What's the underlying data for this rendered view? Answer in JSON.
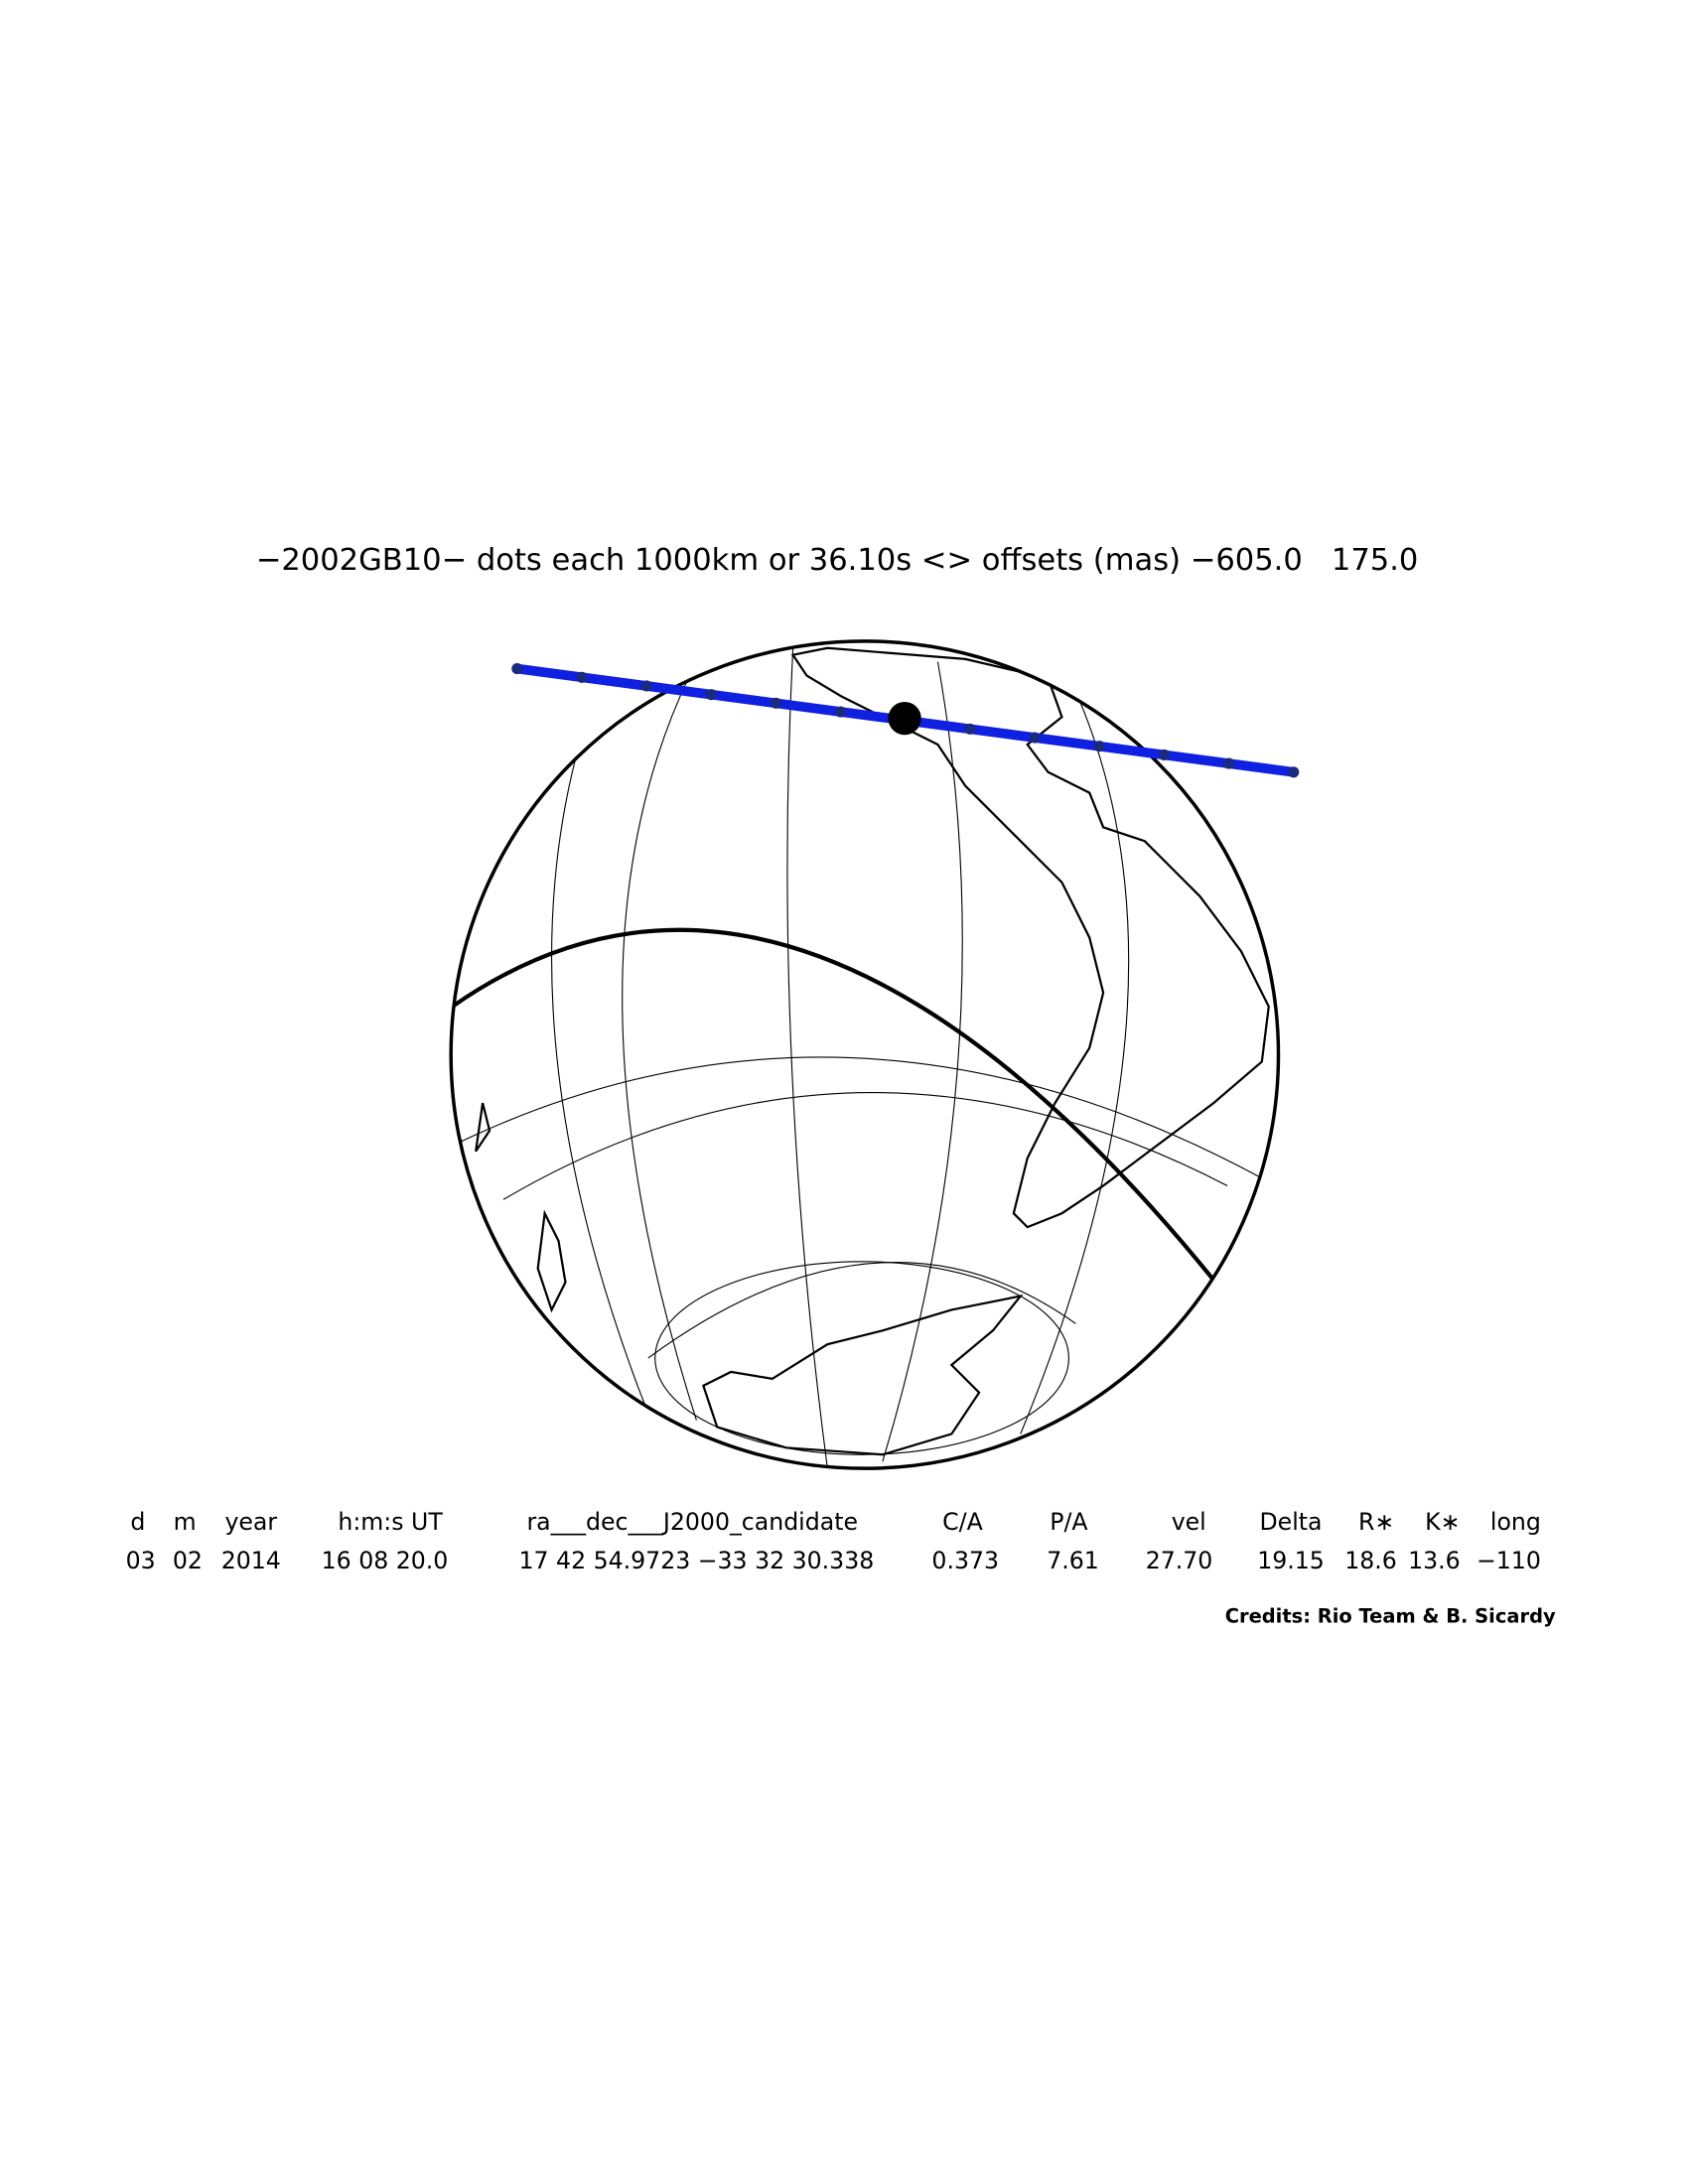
{
  "header": {
    "title": "−2002GB10− dots each 1000km or 36.10s <> offsets (mas) −605.0   175.0"
  },
  "table": {
    "headers": [
      "d",
      "m",
      "year",
      "h:m:s UT",
      "ra___dec___J2000_candidate",
      "C/A",
      "P/A",
      "vel",
      "Delta",
      "R∗",
      "K∗",
      "long"
    ],
    "values": [
      "03",
      "02",
      "2014",
      "16 08 20.0",
      "17 42 54.9723 −33 32 30.338",
      "0.373",
      "7.61",
      "27.70",
      "19.15",
      "18.6",
      "13.6",
      "−110"
    ]
  },
  "credits": "Credits: Rio Team & B. Sicardy"
}
